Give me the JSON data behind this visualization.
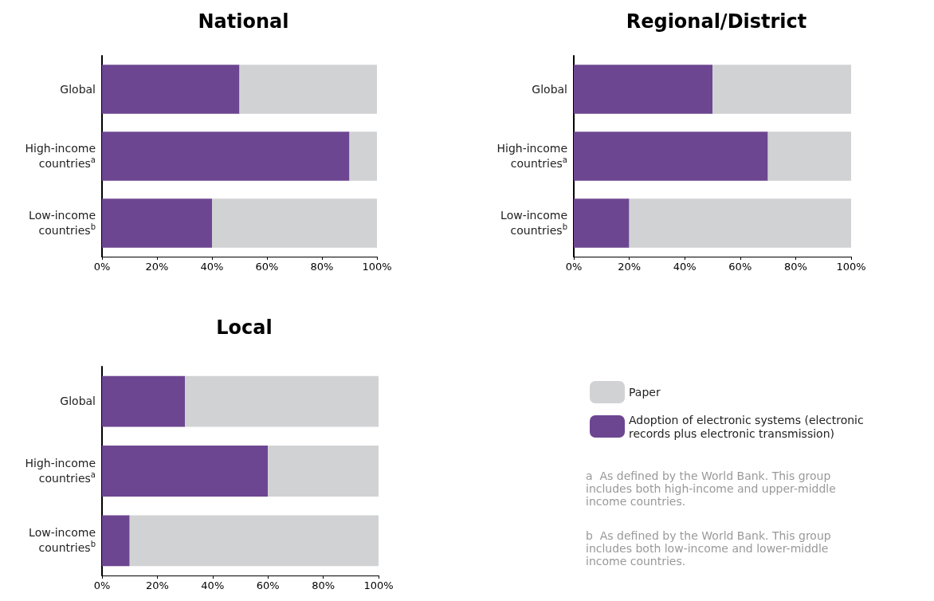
{
  "chart_data": [
    {
      "type": "bar",
      "title": "National",
      "orientation": "horizontal",
      "stacked": true,
      "categories": [
        "Global",
        "High-income countries$^{a}$",
        "Low-income countries$^{b}$"
      ],
      "series": [
        {
          "color": "#6d4691",
          "values": [
            50,
            90,
            40
          ]
        },
        {
          "color": "#d1d2d4",
          "values": [
            50,
            10,
            60
          ]
        }
      ],
      "xlim": [
        0,
        100
      ],
      "xticks": [
        {
          "value": 0,
          "label": "0%"
        },
        {
          "value": 20,
          "label": "20%"
        },
        {
          "value": 40,
          "label": "40%"
        },
        {
          "value": 60,
          "label": "60%"
        },
        {
          "value": 80,
          "label": "80%"
        },
        {
          "value": 100,
          "label": "100%"
        }
      ],
      "grid": false
    },
    {
      "type": "bar",
      "title": "Regional/District",
      "orientation": "horizontal",
      "stacked": true,
      "categories": [
        "Global",
        "High-income countries$^{a}$",
        "Low-income countries$^{b}$"
      ],
      "series": [
        {
          "color": "#6d4691",
          "values": [
            50,
            70,
            20
          ]
        },
        {
          "color": "#d1d2d4",
          "values": [
            50,
            30,
            80
          ]
        }
      ],
      "xlim": [
        0,
        100
      ],
      "xticks": [
        {
          "value": 0,
          "label": "0%"
        },
        {
          "value": 20,
          "label": "20%"
        },
        {
          "value": 40,
          "label": "40%"
        },
        {
          "value": 60,
          "label": "60%"
        },
        {
          "value": 80,
          "label": "80%"
        },
        {
          "value": 100,
          "label": "100%"
        }
      ],
      "grid": false
    },
    {
      "type": "bar",
      "title": "Local",
      "orientation": "horizontal",
      "stacked": true,
      "categories": [
        "Global",
        "High-income countries$^{a}$",
        "Low-income countries$^{b}$"
      ],
      "series": [
        {
          "name": "Adoption of electronic systems (electronic records plus electronic transmission)",
          "color": "#6d4691",
          "values": [
            30,
            60,
            10
          ]
        },
        {
          "name": "Paper",
          "color": "#d1d2d4",
          "values": [
            70,
            40,
            90
          ]
        }
      ],
      "xlim": [
        0,
        100
      ],
      "xticks": [
        {
          "value": 0,
          "label": "0%"
        },
        {
          "value": 20,
          "label": "20%"
        },
        {
          "value": 40,
          "label": "40%"
        },
        {
          "value": 60,
          "label": "60%"
        },
        {
          "value": 80,
          "label": "80%"
        },
        {
          "value": 100,
          "label": "100%"
        }
      ],
      "grid": false,
      "legend": "right",
      "annotations": [
        "a  As defined by the World Bank. This group includes both high-income and upper-middle income countries.",
        "b  As defined by the World Bank. This group includes both low-income and lower-middle income countries."
      ]
    }
  ]
}
